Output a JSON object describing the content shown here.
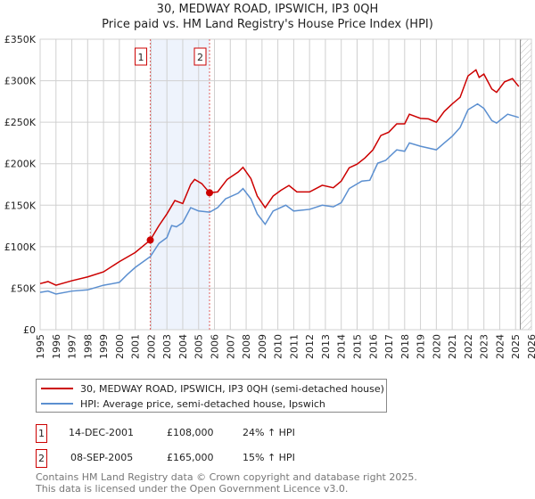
{
  "title": "30, MEDWAY ROAD, IPSWICH, IP3 0QH",
  "subtitle": "Price paid vs. HM Land Registry's House Price Index (HPI)",
  "chart_data": {
    "type": "line",
    "title": "30, MEDWAY ROAD, IPSWICH, IP3 0QH — Price paid vs. HM Land Registry's House Price Index (HPI)",
    "xlim": [
      1995,
      2026
    ],
    "ylim": [
      0,
      350000
    ],
    "yticks": [
      0,
      50000,
      100000,
      150000,
      200000,
      250000,
      300000,
      350000
    ],
    "ytick_labels": [
      "£0",
      "£50K",
      "£100K",
      "£150K",
      "£200K",
      "£250K",
      "£300K",
      "£350K"
    ],
    "xticks": [
      1995,
      1996,
      1997,
      1998,
      1999,
      2000,
      2001,
      2002,
      2003,
      2004,
      2005,
      2006,
      2007,
      2008,
      2009,
      2010,
      2011,
      2012,
      2013,
      2014,
      2015,
      2016,
      2017,
      2018,
      2019,
      2020,
      2021,
      2022,
      2023,
      2024,
      2025,
      2026
    ],
    "grid": true,
    "shaded_range": [
      2001.95,
      2005.69
    ],
    "forecast_from": 2025.3,
    "series": [
      {
        "name": "30, MEDWAY ROAD, IPSWICH, IP3 0QH (semi-detached house)",
        "color": "#cc0000",
        "x": [
          1995,
          1995.5,
          1996,
          1997,
          1998,
          1999,
          2000,
          2001,
          2001.95,
          2002.5,
          2003,
          2003.5,
          2004,
          2004.5,
          2004.75,
          2005.2,
          2005.69,
          2006.2,
          2006.8,
          2007.5,
          2007.8,
          2008.3,
          2008.7,
          2009.2,
          2009.7,
          2010.2,
          2010.7,
          2011.2,
          2012,
          2012.8,
          2013.5,
          2014,
          2014.5,
          2015,
          2015.5,
          2016,
          2016.5,
          2017,
          2017.5,
          2018,
          2018.3,
          2019,
          2019.5,
          2020,
          2020.5,
          2021,
          2021.5,
          2022,
          2022.5,
          2022.7,
          2023,
          2023.5,
          2023.8,
          2024.3,
          2024.8,
          2025.2
        ],
        "y": [
          55500,
          58000,
          53600,
          59000,
          63600,
          69700,
          82000,
          93000,
          108000,
          125500,
          139500,
          155600,
          152000,
          175000,
          181000,
          176000,
          165000,
          166000,
          181000,
          190000,
          195600,
          182000,
          161000,
          147000,
          161000,
          168000,
          173800,
          166000,
          166000,
          174000,
          171000,
          179000,
          195000,
          199500,
          207000,
          216700,
          234000,
          238000,
          248000,
          248000,
          259600,
          254600,
          254000,
          250000,
          263000,
          272000,
          280000,
          305800,
          313000,
          304000,
          308000,
          290000,
          286000,
          298600,
          302600,
          293000
        ]
      },
      {
        "name": "HPI: Average price, semi-detached house, Ipswich",
        "color": "#5b8fd0",
        "x": [
          1995,
          1995.5,
          1996,
          1997,
          1998,
          1999,
          2000,
          2000.5,
          2001,
          2001.95,
          2002.5,
          2003,
          2003.3,
          2003.6,
          2004,
          2004.5,
          2005,
          2005.7,
          2006.2,
          2006.7,
          2007.5,
          2007.8,
          2008.3,
          2008.7,
          2009.2,
          2009.7,
          2010.5,
          2011,
          2012,
          2012.8,
          2013.5,
          2014,
          2014.5,
          2015.3,
          2015.8,
          2016.3,
          2016.8,
          2017.5,
          2018,
          2018.3,
          2019,
          2020,
          2020.5,
          2021,
          2021.5,
          2022,
          2022.6,
          2023,
          2023.5,
          2023.8,
          2024.5,
          2025.2
        ],
        "y": [
          45000,
          46500,
          43000,
          46500,
          48000,
          53600,
          57000,
          66500,
          75000,
          88000,
          104000,
          111000,
          125500,
          124000,
          129000,
          147000,
          143000,
          141600,
          147000,
          157700,
          164500,
          170000,
          157700,
          139500,
          127000,
          143000,
          150000,
          143000,
          145000,
          150000,
          148000,
          153000,
          170000,
          179000,
          180000,
          200600,
          204000,
          216700,
          215000,
          225000,
          221000,
          216700,
          225000,
          233000,
          243600,
          265000,
          272000,
          266600,
          252000,
          249000,
          259600,
          255700
        ]
      }
    ],
    "annotations": [
      {
        "label": "1",
        "x": 2001.95,
        "y": 108000
      },
      {
        "label": "2",
        "x": 2005.69,
        "y": 165000
      }
    ]
  },
  "legend": {
    "items": [
      "30, MEDWAY ROAD, IPSWICH, IP3 0QH (semi-detached house)",
      "HPI: Average price, semi-detached house, Ipswich"
    ]
  },
  "transactions": [
    {
      "num": "1",
      "date": "14-DEC-2001",
      "price": "£108,000",
      "hpi": "24% ↑ HPI"
    },
    {
      "num": "2",
      "date": "08-SEP-2005",
      "price": "£165,000",
      "hpi": "15% ↑ HPI"
    }
  ],
  "footer": {
    "line1": "Contains HM Land Registry data © Crown copyright and database right 2025.",
    "line2": "This data is licensed under the Open Government Licence v3.0."
  }
}
